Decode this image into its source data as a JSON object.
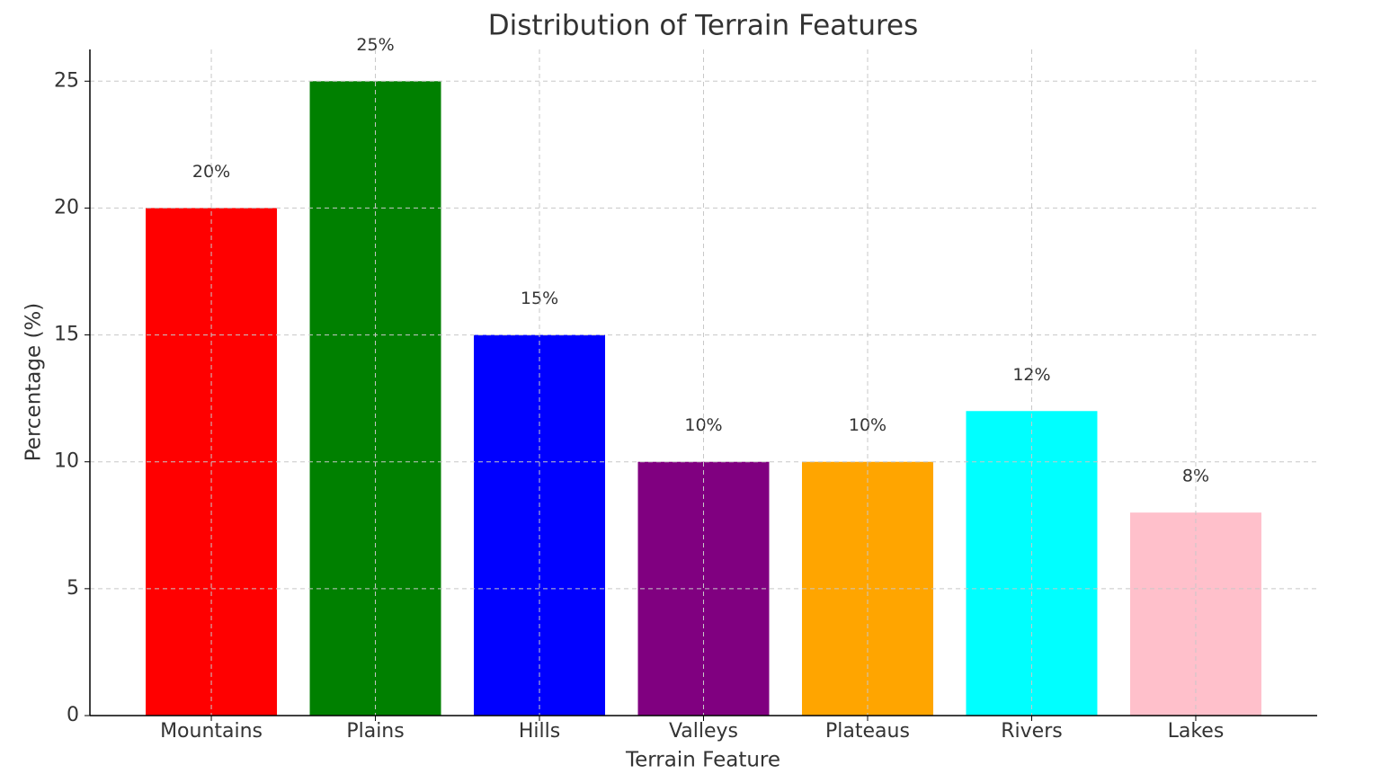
{
  "chart_data": {
    "type": "bar",
    "title": "Distribution of Terrain Features",
    "x_label": "Terrain Feature",
    "y_label": "Percentage (%)",
    "categories": [
      "Mountains",
      "Plains",
      "Hills",
      "Valleys",
      "Plateaus",
      "Rivers",
      "Lakes"
    ],
    "values": [
      20,
      25,
      15,
      10,
      10,
      12,
      8
    ],
    "value_labels": [
      "20%",
      "25%",
      "15%",
      "10%",
      "10%",
      "12%",
      "8%"
    ],
    "colors": [
      "#ff0000",
      "#008000",
      "#0000ff",
      "#800080",
      "#ffa500",
      "#00ffff",
      "#ffc0cb"
    ],
    "ylim": [
      0,
      26.25
    ],
    "yticks": [
      0,
      5,
      10,
      15,
      20,
      25
    ],
    "grid": true
  }
}
